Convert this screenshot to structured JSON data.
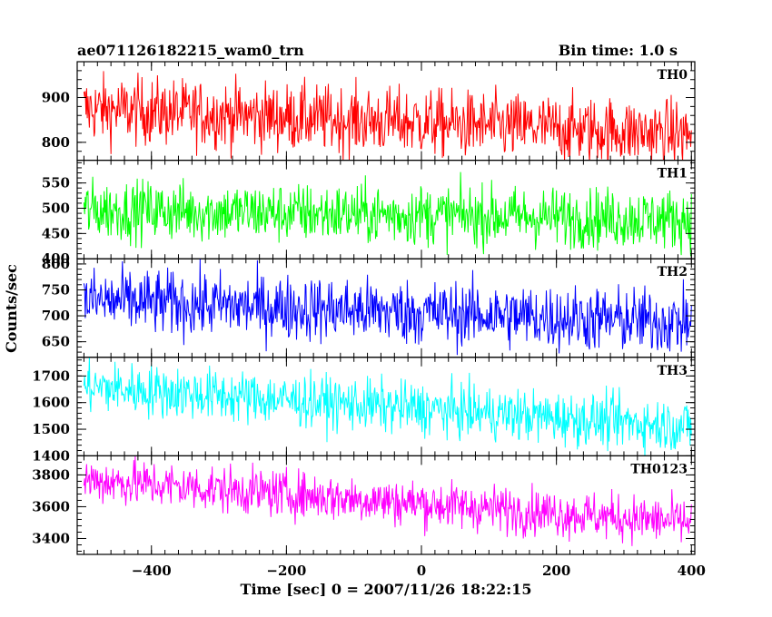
{
  "chart_data": {
    "type": "line",
    "title": "ae071126182215_wam0_trn",
    "bin_time": "Bin time: 1.0 s",
    "xlabel": "Time [sec] 0 = 2007/11/26 18:22:15",
    "ylabel": "Counts/sec",
    "xlim": [
      -510,
      405
    ],
    "x_start": -500,
    "x_end": 400,
    "x_step": 1,
    "x_ticks": [
      -400,
      -200,
      0,
      200,
      400
    ],
    "x_tick_labels": [
      "−400",
      "−200",
      "0",
      "200",
      "400"
    ],
    "panels": [
      {
        "name": "TH0",
        "color": "#ff0000",
        "ylim": [
          760,
          980
        ],
        "yticks": [
          800,
          900
        ],
        "ytick_labels": [
          "800",
          "900"
        ],
        "trend": {
          "start": 875,
          "end": 818
        },
        "noise": 38,
        "spikes": [
          [
            -10,
            45
          ]
        ]
      },
      {
        "name": "TH1",
        "color": "#00ff00",
        "ylim": [
          400,
          595
        ],
        "yticks": [
          400,
          450,
          500,
          550
        ],
        "ytick_labels": [
          "400",
          "450",
          "500",
          "550"
        ],
        "trend": {
          "start": 497,
          "end": 478
        },
        "noise": 30,
        "spikes": [
          [
            -410,
            40
          ],
          [
            0,
            35
          ]
        ]
      },
      {
        "name": "TH2",
        "color": "#0000ff",
        "ylim": [
          620,
          810
        ],
        "yticks": [
          650,
          700,
          750,
          800
        ],
        "ytick_labels": [
          "650",
          "700",
          "750",
          "800"
        ],
        "trend": {
          "start": 730,
          "end": 687
        },
        "noise": 32,
        "spikes": [
          [
            100,
            30
          ]
        ]
      },
      {
        "name": "TH3",
        "color": "#00ffff",
        "ylim": [
          1400,
          1770
        ],
        "yticks": [
          1400,
          1500,
          1600,
          1700
        ],
        "ytick_labels": [
          "1400",
          "1500",
          "1600",
          "1700"
        ],
        "trend": {
          "start": 1660,
          "end": 1510
        },
        "noise": 50,
        "spikes": [],
        "step": {
          "at": 65,
          "delta": -50
        }
      },
      {
        "name": "TH0123",
        "color": "#ff00ff",
        "ylim": [
          3300,
          3920
        ],
        "yticks": [
          3400,
          3600,
          3800
        ],
        "ytick_labels": [
          "3400",
          "3600",
          "3800"
        ],
        "trend": {
          "start": 3770,
          "end": 3500
        },
        "noise": 75,
        "spikes": [
          [
            0,
            80
          ]
        ],
        "step": {
          "at": 65,
          "delta": -50
        }
      }
    ]
  }
}
